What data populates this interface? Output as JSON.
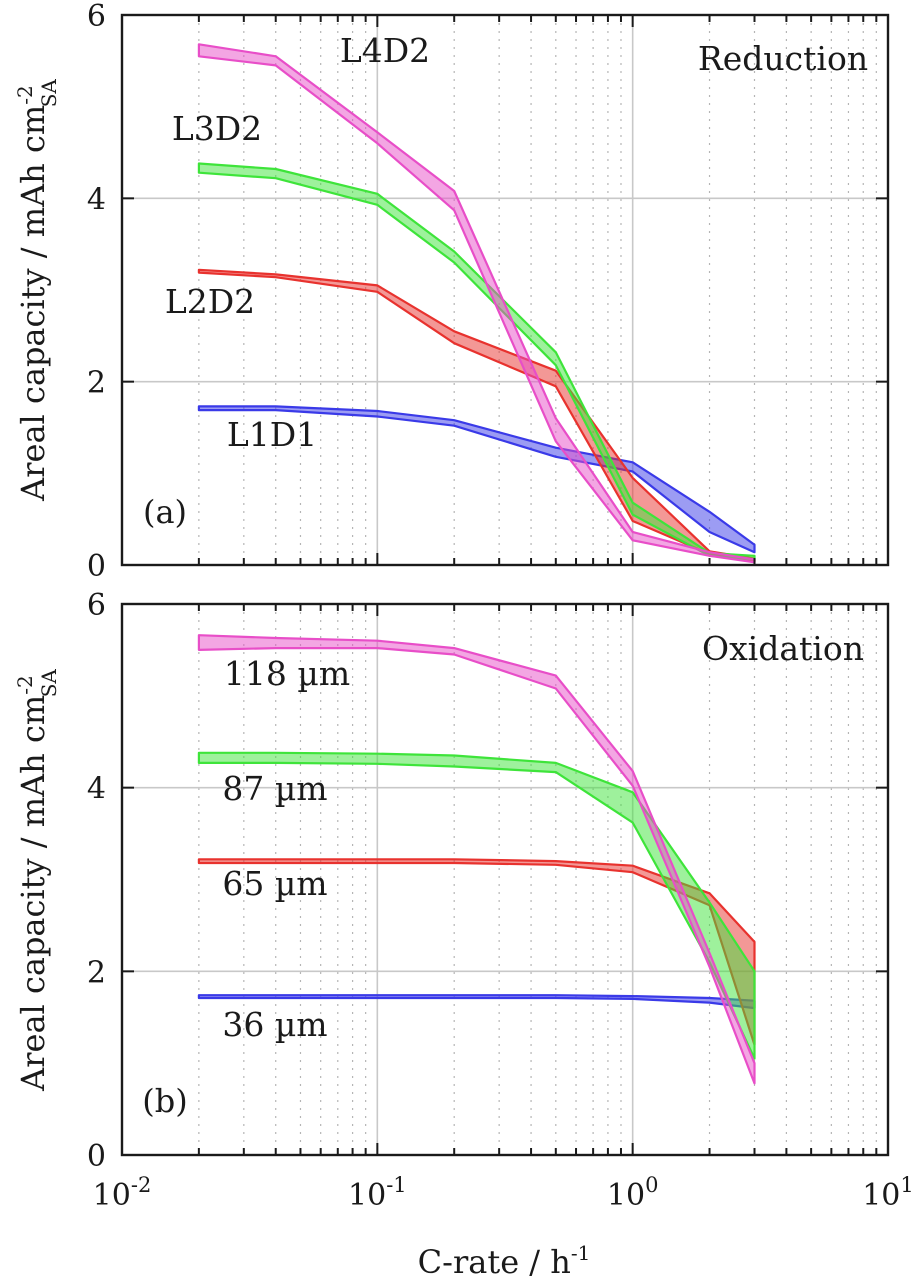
{
  "chart_data": [
    {
      "type": "area",
      "panel_label": "(a)",
      "corner_title": "Reduction",
      "ylabel": "Areal capacity / mAh cm",
      "ylabel_sup": "-2",
      "ylabel_sub": "SA",
      "ylim": [
        0,
        6
      ],
      "yticks": [
        0,
        2,
        4,
        6
      ],
      "xscale": "log",
      "xlim": [
        0.01,
        10
      ],
      "grid": true,
      "series": [
        {
          "name": "L1D1",
          "color": "#3a3ae8",
          "x": [
            0.02,
            0.04,
            0.1,
            0.2,
            0.5,
            1,
            2,
            3
          ],
          "upper": [
            1.73,
            1.73,
            1.68,
            1.58,
            1.28,
            1.12,
            0.58,
            0.22
          ],
          "lower": [
            1.69,
            1.69,
            1.62,
            1.52,
            1.18,
            1.02,
            0.36,
            0.14
          ]
        },
        {
          "name": "L2D2",
          "color": "#e8322e",
          "x": [
            0.02,
            0.04,
            0.1,
            0.2,
            0.5,
            1,
            2,
            3
          ],
          "upper": [
            3.22,
            3.17,
            3.05,
            2.55,
            2.12,
            0.95,
            0.15,
            0.07
          ],
          "lower": [
            3.19,
            3.14,
            2.98,
            2.42,
            1.95,
            0.48,
            0.12,
            0.04
          ]
        },
        {
          "name": "L3D2",
          "color": "#3ee43a",
          "x": [
            0.02,
            0.04,
            0.1,
            0.2,
            0.5,
            1,
            2,
            3
          ],
          "upper": [
            4.38,
            4.32,
            4.05,
            3.42,
            2.32,
            0.68,
            0.13,
            0.1
          ],
          "lower": [
            4.28,
            4.22,
            3.93,
            3.3,
            2.18,
            0.55,
            0.1,
            0.06
          ]
        },
        {
          "name": "L4D2",
          "color": "#e84ec8",
          "x": [
            0.02,
            0.04,
            0.1,
            0.2,
            0.5,
            1,
            2,
            3
          ],
          "upper": [
            5.68,
            5.55,
            4.72,
            4.08,
            1.6,
            0.36,
            0.14,
            0.06
          ],
          "lower": [
            5.55,
            5.45,
            4.6,
            3.87,
            1.35,
            0.27,
            0.1,
            0.03
          ]
        }
      ]
    },
    {
      "type": "area",
      "panel_label": "(b)",
      "corner_title": "Oxidation",
      "ylabel": "Areal capacity / mAh cm",
      "ylabel_sup": "-2",
      "ylabel_sub": "SA",
      "xlabel": "C-rate / h",
      "xlabel_sup": "-1",
      "xtick_base": "10",
      "xtick_exponents": [
        "-2",
        "-1",
        "0",
        "1"
      ],
      "ylim": [
        0,
        6
      ],
      "yticks": [
        0,
        2,
        4,
        6
      ],
      "xscale": "log",
      "xlim": [
        0.01,
        10
      ],
      "grid": true,
      "series": [
        {
          "name": "36 µm",
          "color": "#3a3ae8",
          "x": [
            0.02,
            0.04,
            0.1,
            0.2,
            0.5,
            1,
            2,
            3
          ],
          "upper": [
            1.74,
            1.74,
            1.74,
            1.74,
            1.74,
            1.73,
            1.71,
            1.68
          ],
          "lower": [
            1.71,
            1.71,
            1.71,
            1.71,
            1.71,
            1.7,
            1.66,
            1.6
          ]
        },
        {
          "name": "65 µm",
          "color": "#e8322e",
          "x": [
            0.02,
            0.04,
            0.1,
            0.2,
            0.5,
            1,
            2,
            3
          ],
          "upper": [
            3.22,
            3.22,
            3.22,
            3.22,
            3.2,
            3.15,
            2.85,
            2.32
          ],
          "lower": [
            3.18,
            3.18,
            3.18,
            3.18,
            3.16,
            3.08,
            2.72,
            1.2
          ]
        },
        {
          "name": "87 µm",
          "color": "#3ee43a",
          "x": [
            0.02,
            0.04,
            0.1,
            0.2,
            0.5,
            1,
            2,
            3
          ],
          "upper": [
            4.38,
            4.38,
            4.37,
            4.35,
            4.27,
            3.95,
            2.75,
            2.0
          ],
          "lower": [
            4.27,
            4.27,
            4.26,
            4.23,
            4.17,
            3.62,
            2.1,
            1.05
          ]
        },
        {
          "name": "118 µm",
          "color": "#e84ec8",
          "x": [
            0.02,
            0.04,
            0.1,
            0.2,
            0.5,
            1,
            2,
            3
          ],
          "upper": [
            5.66,
            5.63,
            5.6,
            5.52,
            5.22,
            4.18,
            2.2,
            1.0
          ],
          "lower": [
            5.5,
            5.52,
            5.52,
            5.45,
            5.08,
            4.02,
            2.05,
            0.78
          ]
        }
      ]
    }
  ]
}
